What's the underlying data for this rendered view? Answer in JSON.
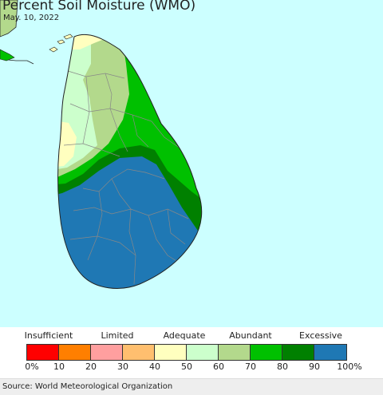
{
  "title": "Percent Soil Moisture (WMO)",
  "date": "May. 10, 2022",
  "source": "Source: World Meteorological Organization",
  "colors": {
    "ocean": "#ccffff",
    "land_outline": "#222222",
    "district_lines": "#888888",
    "mainland_india": "#b3d98c"
  },
  "legend": {
    "categories": [
      "Insufficient",
      "Limited",
      "Adequate",
      "Abundant",
      "Excessive"
    ],
    "bins": [
      {
        "range": "0-10",
        "color": "#ff0000"
      },
      {
        "range": "10-20",
        "color": "#ff7f00"
      },
      {
        "range": "20-30",
        "color": "#ff9f9f"
      },
      {
        "range": "30-40",
        "color": "#ffbf6f"
      },
      {
        "range": "40-50",
        "color": "#ffffbf"
      },
      {
        "range": "50-60",
        "color": "#ccffcc"
      },
      {
        "range": "60-70",
        "color": "#b3d98c"
      },
      {
        "range": "70-80",
        "color": "#00c000"
      },
      {
        "range": "80-90",
        "color": "#008000"
      },
      {
        "range": "90-100",
        "color": "#1f78b4"
      }
    ],
    "ticks": [
      "0%",
      "10",
      "20",
      "30",
      "40",
      "50",
      "60",
      "70",
      "80",
      "90",
      "100%"
    ]
  },
  "map_zones": [
    {
      "name": "Jaffna peninsula",
      "moisture": "40-50"
    },
    {
      "name": "north-central belt",
      "moisture": "60-70"
    },
    {
      "name": "northwest coast",
      "moisture": "50-60"
    },
    {
      "name": "Puttalam coast",
      "moisture": "40-50"
    },
    {
      "name": "east coast and central band",
      "moisture": "70-80"
    },
    {
      "name": "eastern strip",
      "moisture": "80-90"
    },
    {
      "name": "southwest and south",
      "moisture": "90-100"
    }
  ]
}
